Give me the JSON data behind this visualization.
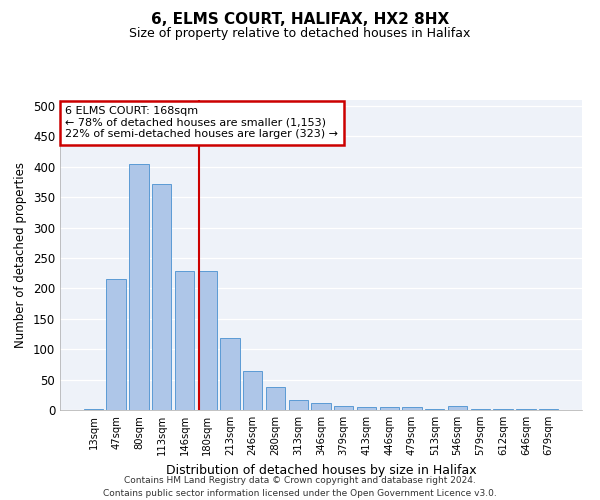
{
  "title_line1": "6, ELMS COURT, HALIFAX, HX2 8HX",
  "title_line2": "Size of property relative to detached houses in Halifax",
  "xlabel": "Distribution of detached houses by size in Halifax",
  "ylabel": "Number of detached properties",
  "categories": [
    "13sqm",
    "47sqm",
    "80sqm",
    "113sqm",
    "146sqm",
    "180sqm",
    "213sqm",
    "246sqm",
    "280sqm",
    "313sqm",
    "346sqm",
    "379sqm",
    "413sqm",
    "446sqm",
    "479sqm",
    "513sqm",
    "546sqm",
    "579sqm",
    "612sqm",
    "646sqm",
    "679sqm"
  ],
  "values": [
    2,
    215,
    404,
    371,
    228,
    228,
    119,
    64,
    38,
    17,
    11,
    6,
    5,
    5,
    5,
    1,
    6,
    1,
    1,
    1,
    1
  ],
  "bar_color": "#aec6e8",
  "bar_edge_color": "#5b9bd5",
  "annotation_line1": "6 ELMS COURT: 168sqm",
  "annotation_line2": "← 78% of detached houses are smaller (1,153)",
  "annotation_line3": "22% of semi-detached houses are larger (323) →",
  "annotation_box_color": "#ffffff",
  "annotation_box_edge_color": "#cc0000",
  "marker_line_color": "#cc0000",
  "background_color": "#eef2f9",
  "ylim": [
    0,
    510
  ],
  "yticks": [
    0,
    50,
    100,
    150,
    200,
    250,
    300,
    350,
    400,
    450,
    500
  ],
  "footer_line1": "Contains HM Land Registry data © Crown copyright and database right 2024.",
  "footer_line2": "Contains public sector information licensed under the Open Government Licence v3.0."
}
